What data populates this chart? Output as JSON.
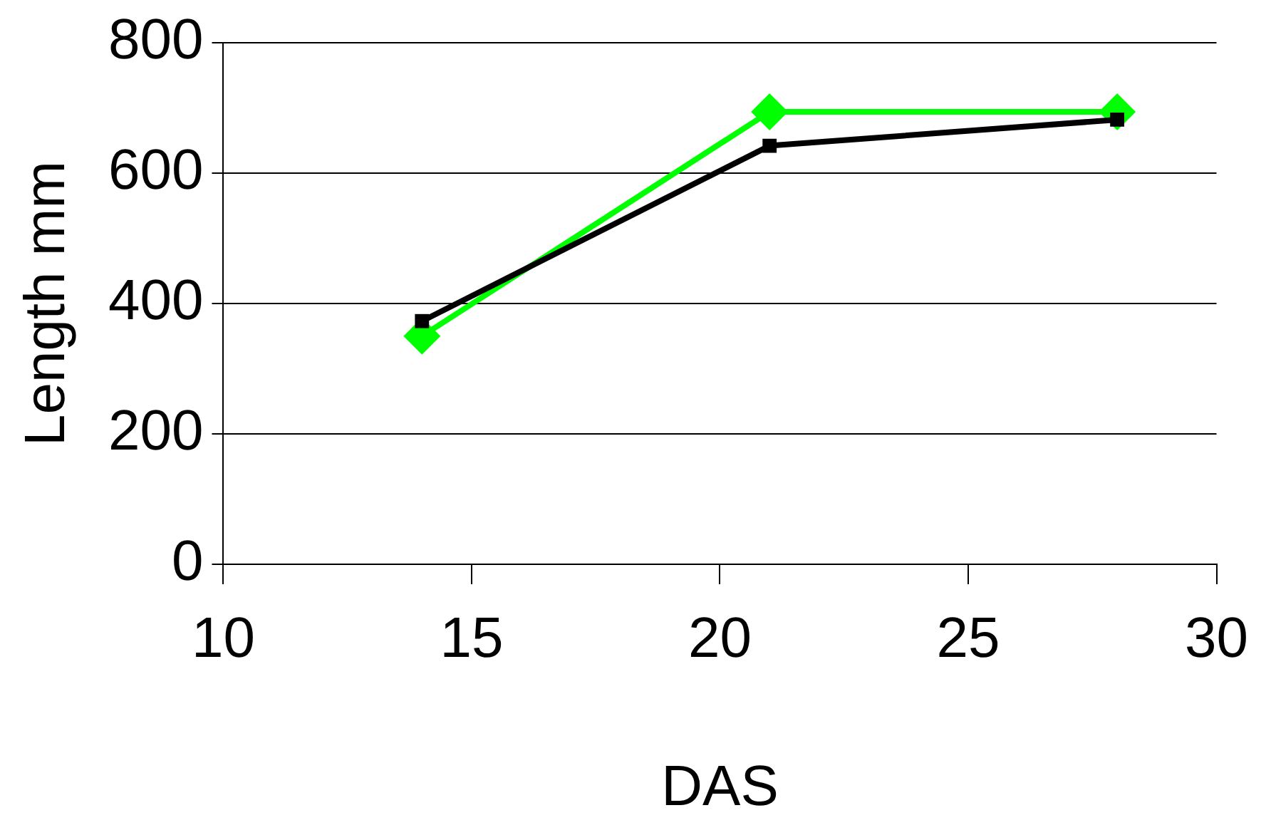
{
  "chart_data": {
    "type": "line",
    "xlabel": "DAS",
    "ylabel": "Length mm",
    "x": [
      14,
      21,
      28
    ],
    "series": [
      {
        "color": "#000000",
        "marker": "square",
        "values": [
          373,
          642,
          682
        ]
      },
      {
        "color": "#00ff00",
        "marker": "diamond",
        "values": [
          350,
          694,
          694
        ]
      }
    ],
    "xlim": [
      10,
      30
    ],
    "xticks": [
      10,
      15,
      20,
      25,
      30
    ],
    "ylim": [
      0,
      800
    ],
    "yticks": [
      0,
      200,
      400,
      600,
      800
    ],
    "grid": "y",
    "legend": false,
    "line_style": "solid"
  }
}
